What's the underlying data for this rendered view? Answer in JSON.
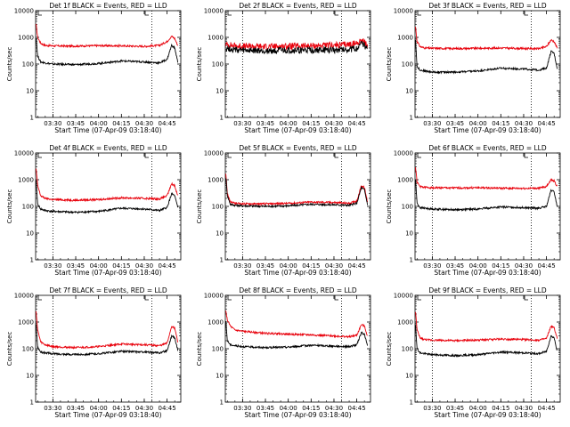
{
  "figure": {
    "xlabel": "Start Time (07-Apr-09 03:18:40)",
    "ylabel": "Counts/sec",
    "x_ticks": [
      "03:30",
      "03:45",
      "04:00",
      "04:15",
      "04:30",
      "04:45"
    ],
    "y_ticks": [
      "1",
      "10",
      "100",
      "1000",
      "10000"
    ],
    "markers": [
      {
        "x": "03:30",
        "style": "dotted"
      },
      {
        "x": "04:35",
        "style": "dotted"
      }
    ],
    "colors": {
      "events": "#000000",
      "lld": "#e8000b"
    }
  },
  "chart_data": [
    {
      "type": "line",
      "title": "Det 1f BLACK = Events, RED = LLD",
      "xlim": [
        "03:18:40",
        "04:54:00"
      ],
      "ylim": [
        1,
        10000
      ],
      "yscale": "log",
      "series": [
        {
          "color": "#e8000b",
          "x": [
            "03:19",
            "03:20",
            "03:22",
            "03:25",
            "03:30",
            "03:45",
            "04:00",
            "04:15",
            "04:30",
            "04:40",
            "04:45",
            "04:48",
            "04:50",
            "04:52"
          ],
          "values": [
            3000,
            1000,
            600,
            500,
            480,
            470,
            490,
            480,
            460,
            500,
            700,
            1100,
            900,
            500
          ]
        },
        {
          "color": "#000000",
          "x": [
            "03:19",
            "03:20",
            "03:22",
            "03:25",
            "03:30",
            "03:45",
            "04:00",
            "04:15",
            "04:30",
            "04:40",
            "04:45",
            "04:48",
            "04:50",
            "04:52"
          ],
          "values": [
            1000,
            200,
            120,
            110,
            100,
            95,
            105,
            130,
            120,
            110,
            150,
            500,
            400,
            120
          ]
        }
      ]
    },
    {
      "type": "line",
      "title": "Det 2f BLACK = Events, RED = LLD",
      "xlim": [
        "03:18:40",
        "04:54:00"
      ],
      "ylim": [
        1,
        10000
      ],
      "yscale": "log",
      "series": [
        {
          "color": "#e8000b",
          "x": [
            "03:19",
            "03:25",
            "03:30",
            "03:45",
            "04:00",
            "04:15",
            "04:30",
            "04:40",
            "04:45",
            "04:48",
            "04:50",
            "04:52"
          ],
          "values": [
            550,
            480,
            460,
            450,
            470,
            480,
            500,
            550,
            600,
            800,
            700,
            450
          ]
        },
        {
          "color": "#000000",
          "x": [
            "03:19",
            "03:25",
            "03:30",
            "03:45",
            "04:00",
            "04:15",
            "04:30",
            "04:40",
            "04:45",
            "04:48",
            "04:50",
            "04:52"
          ],
          "values": [
            400,
            340,
            320,
            310,
            320,
            330,
            340,
            360,
            380,
            600,
            500,
            350
          ]
        }
      ]
    },
    {
      "type": "line",
      "title": "Det 3f BLACK = Events, RED = LLD",
      "xlim": [
        "03:18:40",
        "04:54:00"
      ],
      "ylim": [
        1,
        10000
      ],
      "yscale": "log",
      "series": [
        {
          "color": "#e8000b",
          "x": [
            "03:19",
            "03:20",
            "03:22",
            "03:25",
            "03:30",
            "03:45",
            "04:00",
            "04:15",
            "04:30",
            "04:40",
            "04:45",
            "04:48",
            "04:50",
            "04:52"
          ],
          "values": [
            2500,
            700,
            450,
            400,
            390,
            380,
            390,
            400,
            380,
            380,
            450,
            800,
            700,
            400
          ]
        },
        {
          "color": "#000000",
          "x": [
            "03:19",
            "03:20",
            "03:22",
            "03:25",
            "03:30",
            "03:45",
            "04:00",
            "04:15",
            "04:30",
            "04:40",
            "04:45",
            "04:48",
            "04:50",
            "04:52"
          ],
          "values": [
            800,
            80,
            60,
            55,
            50,
            50,
            55,
            70,
            65,
            60,
            70,
            300,
            250,
            70
          ]
        }
      ]
    },
    {
      "type": "line",
      "title": "Det 4f BLACK = Events, RED = LLD",
      "xlim": [
        "03:18:40",
        "04:54:00"
      ],
      "ylim": [
        1,
        10000
      ],
      "yscale": "log",
      "series": [
        {
          "color": "#e8000b",
          "x": [
            "03:19",
            "03:20",
            "03:22",
            "03:25",
            "03:30",
            "03:45",
            "04:00",
            "04:15",
            "04:30",
            "04:40",
            "04:45",
            "04:48",
            "04:50",
            "04:52"
          ],
          "values": [
            2500,
            600,
            250,
            200,
            180,
            170,
            180,
            210,
            200,
            190,
            250,
            700,
            600,
            250
          ]
        },
        {
          "color": "#000000",
          "x": [
            "03:19",
            "03:20",
            "03:22",
            "03:25",
            "03:30",
            "03:45",
            "04:00",
            "04:15",
            "04:30",
            "04:40",
            "04:45",
            "04:48",
            "04:50",
            "04:52"
          ],
          "values": [
            900,
            120,
            80,
            70,
            65,
            60,
            65,
            85,
            80,
            70,
            90,
            300,
            250,
            90
          ]
        }
      ]
    },
    {
      "type": "line",
      "title": "Det 5f BLACK = Events, RED = LLD",
      "xlim": [
        "03:18:40",
        "04:54:00"
      ],
      "ylim": [
        1,
        10000
      ],
      "yscale": "log",
      "series": [
        {
          "color": "#e8000b",
          "x": [
            "03:19",
            "03:20",
            "03:22",
            "03:25",
            "03:30",
            "03:45",
            "04:00",
            "04:15",
            "04:30",
            "04:40",
            "04:45",
            "04:48",
            "04:50",
            "04:52"
          ],
          "values": [
            1800,
            300,
            150,
            130,
            125,
            125,
            130,
            145,
            140,
            130,
            160,
            600,
            500,
            150
          ]
        },
        {
          "color": "#000000",
          "x": [
            "03:19",
            "03:20",
            "03:22",
            "03:25",
            "03:30",
            "03:45",
            "04:00",
            "04:15",
            "04:30",
            "04:40",
            "04:45",
            "04:48",
            "04:50",
            "04:52"
          ],
          "values": [
            1200,
            250,
            120,
            110,
            105,
            100,
            105,
            120,
            115,
            110,
            130,
            500,
            420,
            120
          ]
        }
      ]
    },
    {
      "type": "line",
      "title": "Det 6f BLACK = Events, RED = LLD",
      "xlim": [
        "03:18:40",
        "04:54:00"
      ],
      "ylim": [
        1,
        10000
      ],
      "yscale": "log",
      "series": [
        {
          "color": "#e8000b",
          "x": [
            "03:19",
            "03:20",
            "03:22",
            "03:25",
            "03:30",
            "03:45",
            "04:00",
            "04:15",
            "04:30",
            "04:40",
            "04:45",
            "04:48",
            "04:50",
            "04:52"
          ],
          "values": [
            3000,
            800,
            550,
            520,
            500,
            490,
            500,
            480,
            470,
            480,
            560,
            1000,
            900,
            550
          ]
        },
        {
          "color": "#000000",
          "x": [
            "03:19",
            "03:20",
            "03:22",
            "03:25",
            "03:30",
            "03:45",
            "04:00",
            "04:15",
            "04:30",
            "04:40",
            "04:45",
            "04:48",
            "04:50",
            "04:52"
          ],
          "values": [
            1000,
            130,
            90,
            85,
            80,
            75,
            80,
            95,
            90,
            85,
            100,
            400,
            350,
            100
          ]
        }
      ]
    },
    {
      "type": "line",
      "title": "Det 7f BLACK = Events, RED = LLD",
      "xlim": [
        "03:18:40",
        "04:54:00"
      ],
      "ylim": [
        1,
        10000
      ],
      "yscale": "log",
      "series": [
        {
          "color": "#e8000b",
          "x": [
            "03:19",
            "03:20",
            "03:22",
            "03:25",
            "03:30",
            "03:45",
            "04:00",
            "04:15",
            "04:30",
            "04:40",
            "04:45",
            "04:48",
            "04:50",
            "04:52"
          ],
          "values": [
            2500,
            500,
            180,
            140,
            120,
            110,
            120,
            150,
            140,
            130,
            160,
            700,
            600,
            180
          ]
        },
        {
          "color": "#000000",
          "x": [
            "03:19",
            "03:20",
            "03:22",
            "03:25",
            "03:30",
            "03:45",
            "04:00",
            "04:15",
            "04:30",
            "04:40",
            "04:45",
            "04:48",
            "04:50",
            "04:52"
          ],
          "values": [
            800,
            110,
            75,
            70,
            65,
            60,
            65,
            80,
            75,
            70,
            85,
            300,
            260,
            90
          ]
        }
      ]
    },
    {
      "type": "line",
      "title": "Det 8f BLACK = Events, RED = LLD",
      "xlim": [
        "03:18:40",
        "04:54:00"
      ],
      "ylim": [
        1,
        10000
      ],
      "yscale": "log",
      "series": [
        {
          "color": "#e8000b",
          "x": [
            "03:19",
            "03:20",
            "03:22",
            "03:25",
            "03:30",
            "03:45",
            "04:00",
            "04:15",
            "04:30",
            "04:40",
            "04:45",
            "04:48",
            "04:50",
            "04:52"
          ],
          "values": [
            2500,
            1200,
            700,
            500,
            450,
            380,
            350,
            330,
            300,
            280,
            320,
            800,
            700,
            300
          ]
        },
        {
          "color": "#000000",
          "x": [
            "03:19",
            "03:20",
            "03:22",
            "03:25",
            "03:30",
            "03:45",
            "04:00",
            "04:15",
            "04:30",
            "04:40",
            "04:45",
            "04:48",
            "04:50",
            "04:52"
          ],
          "values": [
            1000,
            200,
            140,
            130,
            120,
            110,
            115,
            135,
            125,
            120,
            140,
            400,
            350,
            130
          ]
        }
      ]
    },
    {
      "type": "line",
      "title": "Det 9f BLACK = Events, RED = LLD",
      "xlim": [
        "03:18:40",
        "04:54:00"
      ],
      "ylim": [
        1,
        10000
      ],
      "yscale": "log",
      "series": [
        {
          "color": "#e8000b",
          "x": [
            "03:19",
            "03:20",
            "03:22",
            "03:25",
            "03:30",
            "03:45",
            "04:00",
            "04:15",
            "04:30",
            "04:40",
            "04:45",
            "04:48",
            "04:50",
            "04:52"
          ],
          "values": [
            2500,
            500,
            250,
            220,
            210,
            200,
            210,
            230,
            220,
            210,
            240,
            700,
            600,
            250
          ]
        },
        {
          "color": "#000000",
          "x": [
            "03:19",
            "03:20",
            "03:22",
            "03:25",
            "03:30",
            "03:45",
            "04:00",
            "04:15",
            "04:30",
            "04:40",
            "04:45",
            "04:48",
            "04:50",
            "04:52"
          ],
          "values": [
            800,
            100,
            70,
            65,
            60,
            55,
            60,
            75,
            70,
            65,
            80,
            300,
            260,
            80
          ]
        }
      ]
    }
  ]
}
